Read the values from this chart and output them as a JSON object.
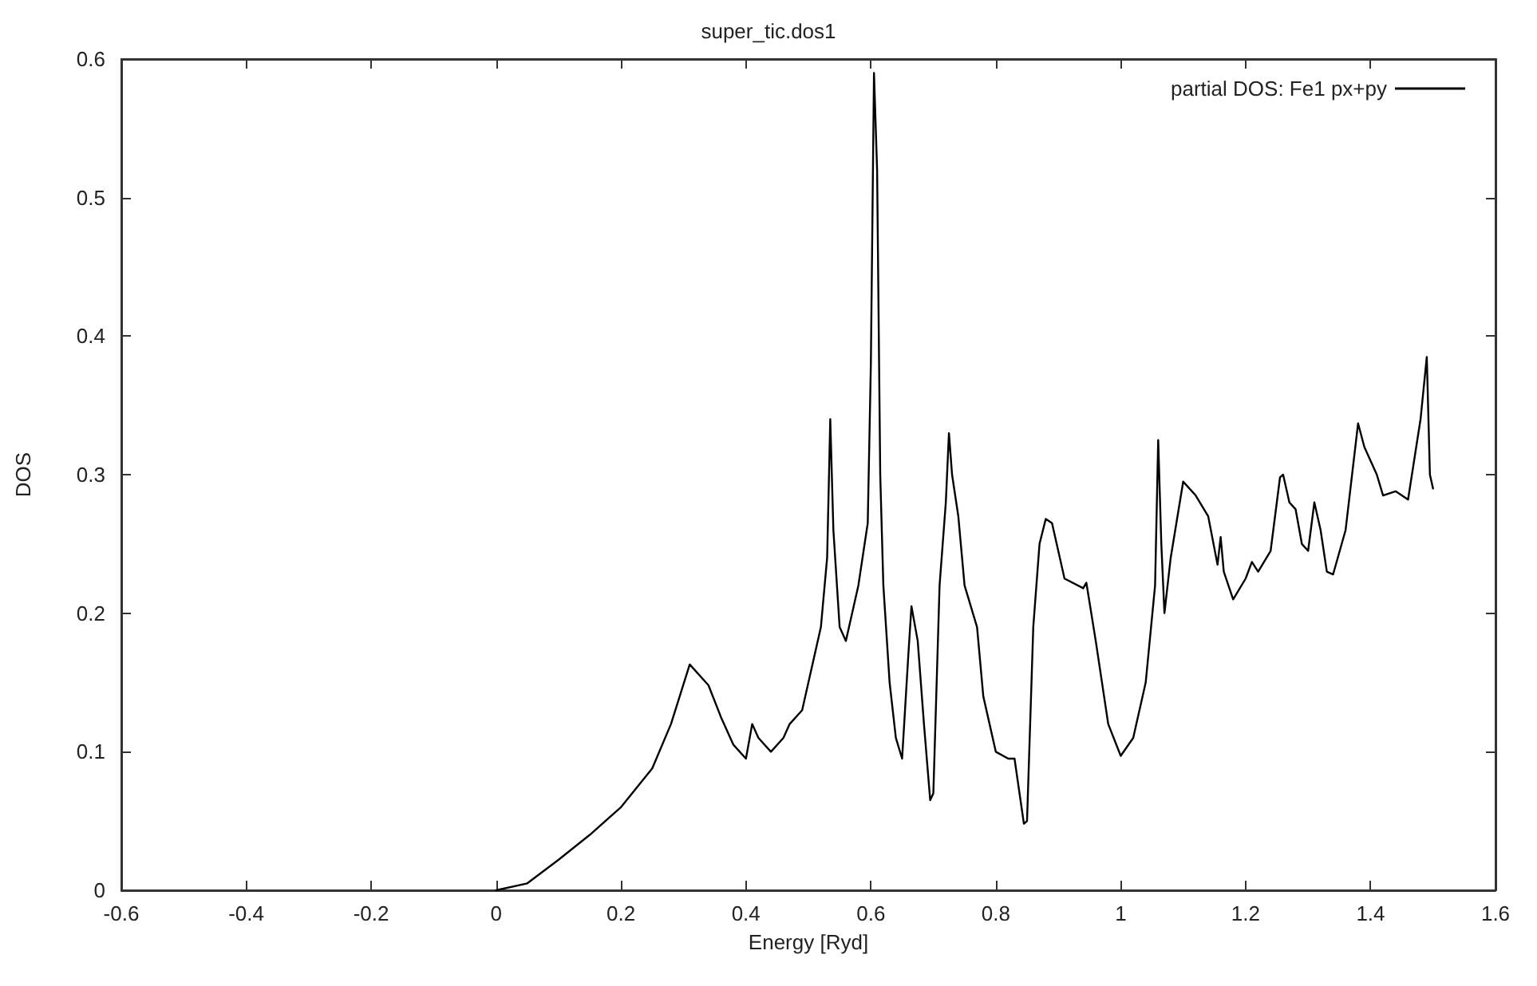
{
  "chart_data": {
    "type": "line",
    "title": "super_tic.dos1",
    "xlabel": "Energy [Ryd]",
    "ylabel": "DOS",
    "xlim": [
      -0.6,
      1.6
    ],
    "xticks": [
      -0.6,
      -0.4,
      -0.2,
      0,
      0.2,
      0.4,
      0.6,
      0.8,
      1,
      1.2,
      1.4,
      1.6
    ],
    "ylim": [
      0,
      0.6
    ],
    "yticks": [
      0,
      0.1,
      0.2,
      0.3,
      0.4,
      0.5,
      0.6
    ],
    "grid": false,
    "legend": "top right",
    "marker": "none",
    "line_style": "solid",
    "series": [
      {
        "name": "partial DOS: Fe1 px+py",
        "color": "#000000",
        "x": [
          0,
          0.05,
          0.1,
          0.15,
          0.2,
          0.25,
          0.28,
          0.31,
          0.34,
          0.36,
          0.38,
          0.4,
          0.41,
          0.42,
          0.44,
          0.46,
          0.47,
          0.49,
          0.5,
          0.52,
          0.53,
          0.535,
          0.54,
          0.55,
          0.56,
          0.58,
          0.595,
          0.6,
          0.605,
          0.61,
          0.615,
          0.62,
          0.63,
          0.64,
          0.65,
          0.66,
          0.665,
          0.675,
          0.685,
          0.695,
          0.7,
          0.71,
          0.72,
          0.725,
          0.73,
          0.74,
          0.75,
          0.77,
          0.78,
          0.8,
          0.82,
          0.83,
          0.845,
          0.85,
          0.86,
          0.87,
          0.88,
          0.89,
          0.91,
          0.94,
          0.945,
          0.96,
          0.98,
          1.0,
          1.02,
          1.04,
          1.055,
          1.06,
          1.065,
          1.07,
          1.08,
          1.1,
          1.11,
          1.12,
          1.14,
          1.155,
          1.16,
          1.165,
          1.18,
          1.2,
          1.21,
          1.22,
          1.24,
          1.255,
          1.26,
          1.27,
          1.28,
          1.29,
          1.3,
          1.31,
          1.32,
          1.33,
          1.34,
          1.36,
          1.38,
          1.39,
          1.41,
          1.42,
          1.44,
          1.46,
          1.48,
          1.49,
          1.495,
          1.5
        ],
        "values": [
          0,
          0.005,
          0.022,
          0.04,
          0.06,
          0.088,
          0.12,
          0.163,
          0.148,
          0.125,
          0.105,
          0.095,
          0.12,
          0.11,
          0.1,
          0.11,
          0.12,
          0.13,
          0.15,
          0.19,
          0.24,
          0.34,
          0.26,
          0.19,
          0.18,
          0.22,
          0.265,
          0.38,
          0.59,
          0.52,
          0.3,
          0.22,
          0.15,
          0.11,
          0.095,
          0.17,
          0.205,
          0.18,
          0.12,
          0.065,
          0.07,
          0.22,
          0.28,
          0.33,
          0.3,
          0.27,
          0.22,
          0.19,
          0.14,
          0.1,
          0.095,
          0.095,
          0.048,
          0.05,
          0.19,
          0.25,
          0.268,
          0.265,
          0.225,
          0.218,
          0.222,
          0.18,
          0.12,
          0.097,
          0.11,
          0.15,
          0.22,
          0.325,
          0.25,
          0.2,
          0.24,
          0.295,
          0.29,
          0.285,
          0.27,
          0.235,
          0.255,
          0.23,
          0.21,
          0.225,
          0.237,
          0.23,
          0.245,
          0.298,
          0.3,
          0.28,
          0.275,
          0.25,
          0.245,
          0.28,
          0.26,
          0.23,
          0.228,
          0.26,
          0.337,
          0.32,
          0.3,
          0.285,
          0.288,
          0.282,
          0.34,
          0.385,
          0.3,
          0.29
        ]
      }
    ]
  }
}
